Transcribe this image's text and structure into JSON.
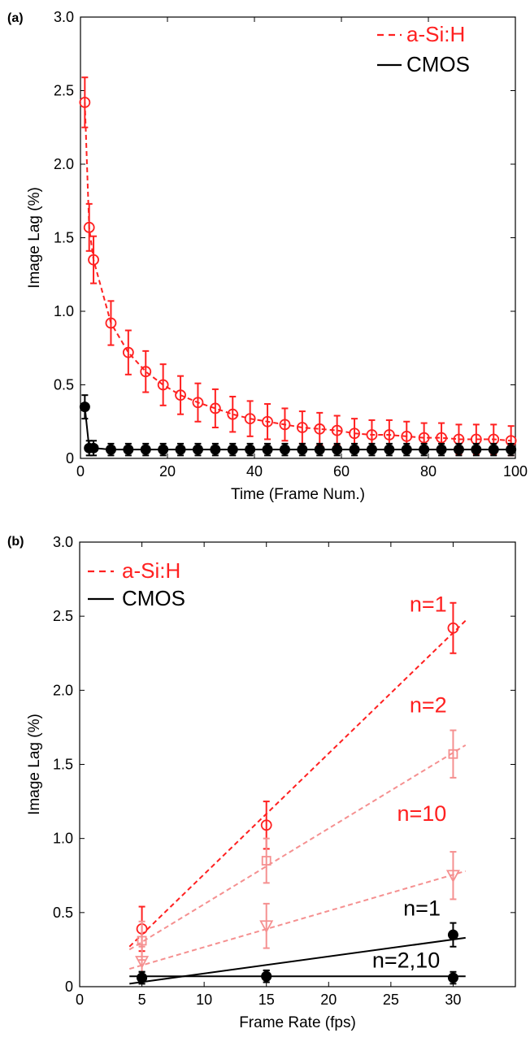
{
  "chart_data": [
    {
      "type": "line",
      "panel_label": "(a)",
      "xlabel": "Time (Frame Num.)",
      "ylabel": "Image Lag (%)",
      "xlim": [
        0,
        100
      ],
      "ylim": [
        0,
        3.0
      ],
      "xticks": [
        0,
        20,
        40,
        60,
        80,
        100
      ],
      "yticks": [
        0,
        0.5,
        1.0,
        1.5,
        2.0,
        2.5,
        3.0
      ],
      "ytick_labels": [
        "0",
        "0.5",
        "1.0",
        "1.5",
        "2.0",
        "2.5",
        "3.0"
      ],
      "grid": false,
      "legend_position": "top-right",
      "series": [
        {
          "name": "a-Si:H",
          "color": "#ff2020",
          "line_style": "dashed",
          "marker": "open-circle",
          "x": [
            1,
            2,
            3,
            7,
            11,
            15,
            19,
            23,
            27,
            31,
            35,
            39,
            43,
            47,
            51,
            55,
            59,
            63,
            67,
            71,
            75,
            79,
            83,
            87,
            91,
            95,
            99
          ],
          "y": [
            2.42,
            1.57,
            1.35,
            0.92,
            0.72,
            0.59,
            0.5,
            0.43,
            0.38,
            0.34,
            0.3,
            0.27,
            0.25,
            0.23,
            0.21,
            0.2,
            0.19,
            0.17,
            0.16,
            0.16,
            0.15,
            0.14,
            0.14,
            0.13,
            0.13,
            0.13,
            0.12
          ],
          "error": [
            0.17,
            0.16,
            0.16,
            0.15,
            0.15,
            0.14,
            0.14,
            0.13,
            0.13,
            0.13,
            0.12,
            0.12,
            0.12,
            0.11,
            0.11,
            0.11,
            0.1,
            0.1,
            0.1,
            0.1,
            0.1,
            0.1,
            0.1,
            0.1,
            0.1,
            0.1,
            0.1
          ]
        },
        {
          "name": "CMOS",
          "color": "#000000",
          "line_style": "solid",
          "marker": "filled-circle",
          "x": [
            1,
            2,
            3,
            7,
            11,
            15,
            19,
            23,
            27,
            31,
            35,
            39,
            43,
            47,
            51,
            55,
            59,
            63,
            67,
            71,
            75,
            79,
            83,
            87,
            91,
            95,
            99
          ],
          "y": [
            0.35,
            0.07,
            0.07,
            0.06,
            0.06,
            0.06,
            0.06,
            0.06,
            0.06,
            0.06,
            0.06,
            0.06,
            0.06,
            0.06,
            0.06,
            0.06,
            0.06,
            0.06,
            0.06,
            0.06,
            0.06,
            0.06,
            0.06,
            0.06,
            0.06,
            0.06,
            0.06
          ],
          "error": [
            0.08,
            0.05,
            0.05,
            0.04,
            0.04,
            0.04,
            0.04,
            0.04,
            0.04,
            0.04,
            0.04,
            0.04,
            0.04,
            0.04,
            0.04,
            0.04,
            0.04,
            0.04,
            0.04,
            0.04,
            0.04,
            0.04,
            0.04,
            0.04,
            0.04,
            0.04,
            0.04
          ]
        }
      ]
    },
    {
      "type": "scatter",
      "panel_label": "(b)",
      "xlabel": "Frame Rate (fps)",
      "ylabel": "Image Lag (%)",
      "xlim": [
        0,
        35
      ],
      "ylim": [
        0,
        3.0
      ],
      "xticks": [
        0,
        5,
        10,
        15,
        20,
        25,
        30
      ],
      "yticks": [
        0,
        0.5,
        1.0,
        1.5,
        2.0,
        2.5,
        3.0
      ],
      "ytick_labels": [
        "0",
        "0.5",
        "1.0",
        "1.5",
        "2.0",
        "2.5",
        "3.0"
      ],
      "grid": false,
      "legend_position": "top-left",
      "legend": [
        {
          "label": "a-Si:H",
          "color": "#ff2020",
          "line_style": "dashed"
        },
        {
          "label": "CMOS",
          "color": "#000000",
          "line_style": "solid"
        }
      ],
      "series": [
        {
          "color": "#ff2020",
          "marker": "open-circle",
          "x": [
            5,
            15,
            30
          ],
          "y": [
            0.39,
            1.09,
            2.42
          ],
          "error": [
            0.15,
            0.16,
            0.17
          ],
          "fit": [
            [
              4,
              0.27
            ],
            [
              31,
              2.47
            ]
          ]
        },
        {
          "color": "#f59090",
          "marker": "open-square",
          "x": [
            5,
            15,
            30
          ],
          "y": [
            0.31,
            0.85,
            1.57
          ],
          "error": [
            0.13,
            0.15,
            0.16
          ],
          "fit": [
            [
              4,
              0.25
            ],
            [
              31,
              1.63
            ]
          ]
        },
        {
          "color": "#f59090",
          "marker": "open-triangle-down",
          "x": [
            5,
            15,
            30
          ],
          "y": [
            0.17,
            0.41,
            0.75
          ],
          "error": [
            0.1,
            0.15,
            0.16
          ],
          "fit": [
            [
              4,
              0.12
            ],
            [
              31,
              0.78
            ]
          ]
        },
        {
          "color": "#000000",
          "marker": "filled-circle",
          "x": [
            5,
            15,
            30
          ],
          "y": [
            0.06,
            0.07,
            0.35
          ],
          "error": [
            0.04,
            0.04,
            0.08
          ],
          "fit": [
            [
              4,
              0.02
            ],
            [
              31,
              0.33
            ]
          ]
        },
        {
          "color": "#000000",
          "marker": "filled-circle",
          "x": [
            5,
            15,
            30
          ],
          "y": [
            0.06,
            0.07,
            0.06
          ],
          "error": [
            0.04,
            0.04,
            0.04
          ],
          "fit": [
            [
              4,
              0.07
            ],
            [
              31,
              0.07
            ]
          ]
        }
      ],
      "annotations": [
        {
          "text": "n=1",
          "x": 26.5,
          "y": 2.53,
          "color": "#ff2020"
        },
        {
          "text": "n=2",
          "x": 26.5,
          "y": 1.85,
          "color": "#ff2020"
        },
        {
          "text": "n=10",
          "x": 25.5,
          "y": 1.12,
          "color": "#ff2020"
        },
        {
          "text": "n=1",
          "x": 26.0,
          "y": 0.48,
          "color": "#000000"
        },
        {
          "text": "n=2,10",
          "x": 23.5,
          "y": 0.13,
          "color": "#000000"
        }
      ]
    }
  ]
}
